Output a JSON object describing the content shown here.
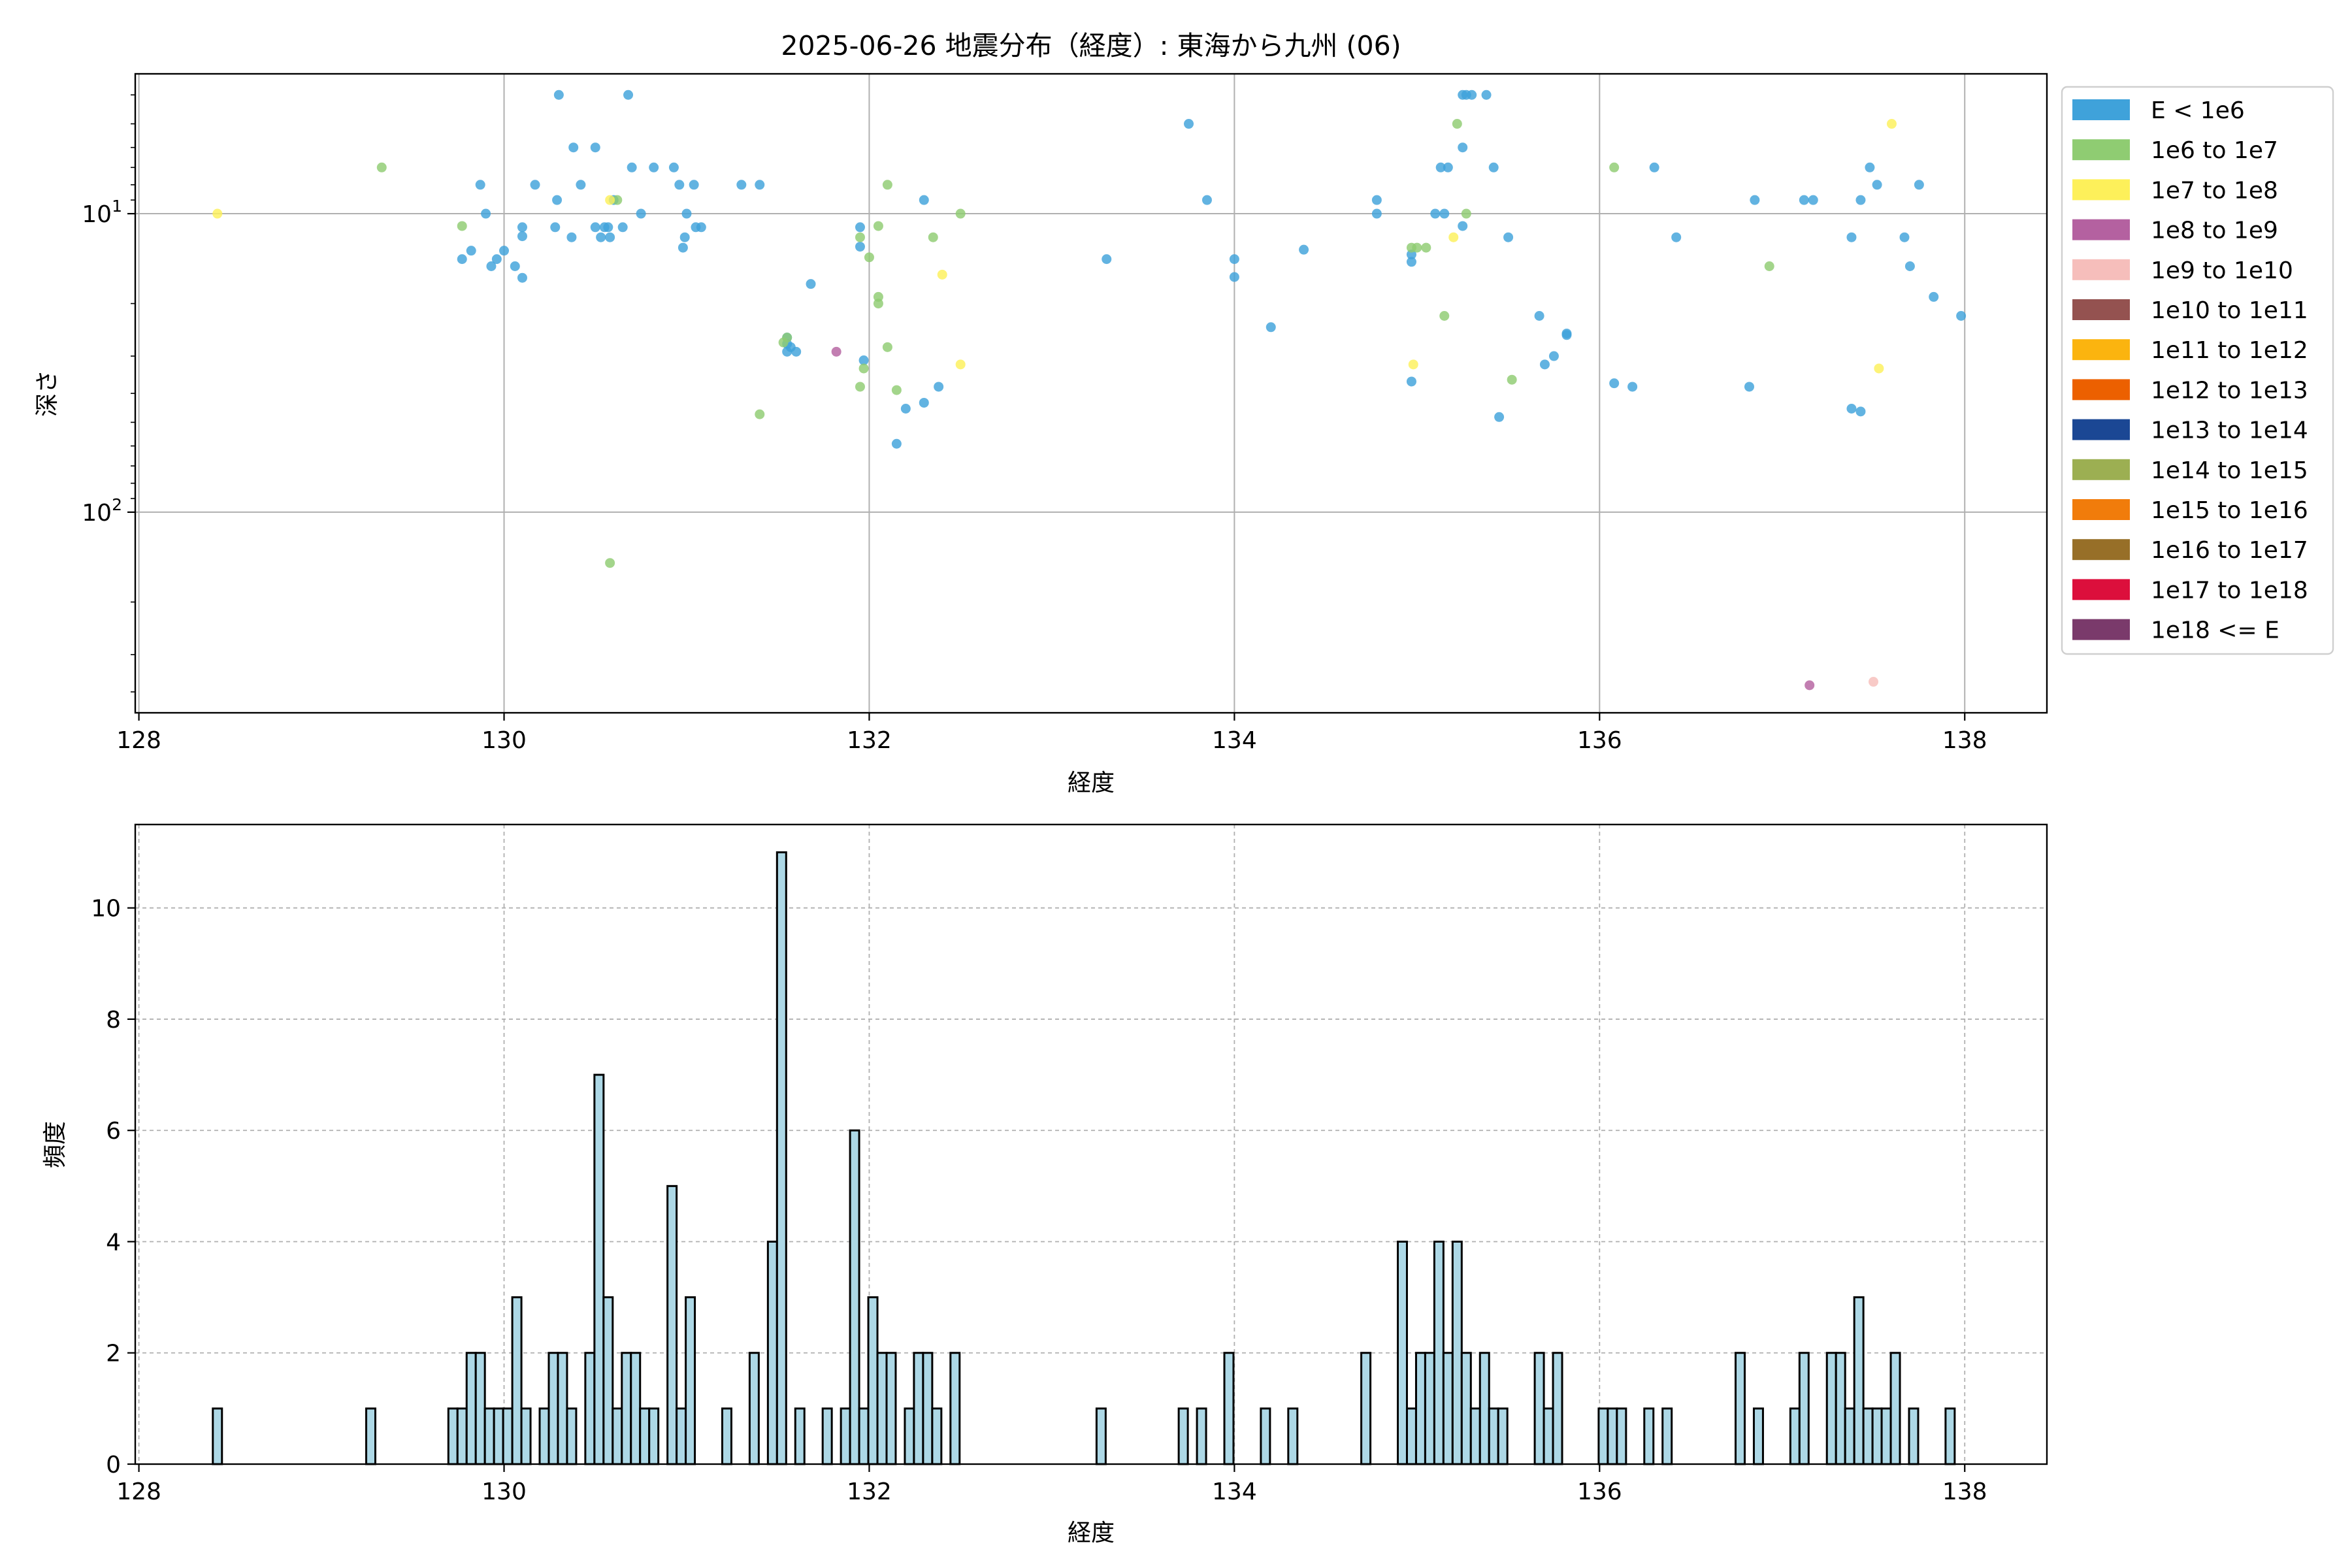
{
  "title": "2025-06-26 地震分布（経度）: 東海から九州 (06)",
  "chart_data": [
    {
      "type": "scatter",
      "xlabel": "経度",
      "ylabel": "深さ",
      "xlim": [
        127.98,
        138.45
      ],
      "xticks": [
        "128",
        "130",
        "132",
        "134",
        "136",
        "138"
      ],
      "yscale": "log",
      "yinverted": true,
      "ylim": [
        3.4,
        470
      ],
      "yticks": [
        {
          "value": 10,
          "base": "10",
          "exp": "1"
        },
        {
          "value": 100,
          "base": "10",
          "exp": "2"
        }
      ],
      "grid": true,
      "legend_position": "outside right",
      "legend": [
        {
          "label": "E < 1e6",
          "color": "#3fa2da"
        },
        {
          "label": "1e6 to 1e7",
          "color": "#8fcc72"
        },
        {
          "label": "1e7 to 1e8",
          "color": "#fdf05a"
        },
        {
          "label": "1e8 to 1e9",
          "color": "#b461a0"
        },
        {
          "label": "1e9 to 1e10",
          "color": "#f6bebb"
        },
        {
          "label": "1e10 to 1e11",
          "color": "#945250"
        },
        {
          "label": "1e11 to 1e12",
          "color": "#fbb40f"
        },
        {
          "label": "1e12 to 1e13",
          "color": "#ec6000"
        },
        {
          "label": "1e13 to 1e14",
          "color": "#1b4794"
        },
        {
          "label": "1e14 to 1e15",
          "color": "#9caf52"
        },
        {
          "label": "1e15 to 1e16",
          "color": "#f17c0b"
        },
        {
          "label": "1e16 to 1e17",
          "color": "#976f28"
        },
        {
          "label": "1e17 to 1e18",
          "color": "#dc0f3c"
        },
        {
          "label": "1e18 <= E",
          "color": "#7a3a6b"
        }
      ],
      "series": [
        {
          "class": 0,
          "points": [
            [
              129.77,
              14.2
            ],
            [
              129.82,
              13.3
            ],
            [
              129.87,
              8.0
            ],
            [
              129.9,
              10.0
            ],
            [
              129.93,
              15.0
            ],
            [
              129.96,
              14.2
            ],
            [
              130.0,
              13.3
            ],
            [
              130.06,
              15.0
            ],
            [
              130.1,
              16.4
            ],
            [
              130.1,
              11.9
            ],
            [
              130.1,
              11.1
            ],
            [
              130.17,
              8.0
            ],
            [
              130.28,
              11.1
            ],
            [
              130.29,
              9.0
            ],
            [
              130.3,
              4.0
            ],
            [
              130.37,
              12.0
            ],
            [
              130.38,
              6.0
            ],
            [
              130.42,
              8.0
            ],
            [
              130.5,
              6.0
            ],
            [
              130.5,
              11.1
            ],
            [
              130.53,
              12.0
            ],
            [
              130.55,
              11.1
            ],
            [
              130.58,
              12.0
            ],
            [
              130.57,
              11.1
            ],
            [
              130.6,
              9.0
            ],
            [
              130.65,
              11.1
            ],
            [
              130.7,
              7.0
            ],
            [
              130.68,
              4.0
            ],
            [
              130.75,
              10.0
            ],
            [
              130.82,
              7.0
            ],
            [
              130.93,
              7.0
            ],
            [
              130.96,
              8.0
            ],
            [
              130.99,
              12.0
            ],
            [
              130.98,
              13.0
            ],
            [
              131.0,
              10.0
            ],
            [
              131.04,
              8.0
            ],
            [
              131.05,
              11.1
            ],
            [
              131.08,
              11.1
            ],
            [
              131.3,
              8.0
            ],
            [
              131.4,
              8.0
            ],
            [
              131.55,
              27.3
            ],
            [
              131.55,
              29.0
            ],
            [
              131.57,
              28.0
            ],
            [
              131.55,
              26.0
            ],
            [
              131.6,
              29.0
            ],
            [
              131.68,
              17.2
            ],
            [
              131.95,
              11.1
            ],
            [
              131.95,
              12.9
            ],
            [
              131.97,
              31.0
            ],
            [
              132.15,
              59.0
            ],
            [
              132.2,
              45.0
            ],
            [
              132.3,
              43.0
            ],
            [
              132.3,
              9.0
            ],
            [
              132.38,
              38.0
            ],
            [
              133.3,
              14.2
            ],
            [
              133.75,
              5.0
            ],
            [
              133.85,
              9.0
            ],
            [
              134.0,
              14.2
            ],
            [
              134.0,
              16.3
            ],
            [
              134.2,
              24.0
            ],
            [
              134.38,
              13.2
            ],
            [
              134.78,
              9.0
            ],
            [
              134.78,
              10.0
            ],
            [
              134.97,
              13.7
            ],
            [
              134.97,
              14.5
            ],
            [
              134.97,
              36.5
            ],
            [
              135.1,
              10.0
            ],
            [
              135.13,
              7.0
            ],
            [
              135.15,
              10.0
            ],
            [
              135.17,
              7.0
            ],
            [
              135.25,
              6.0
            ],
            [
              135.25,
              4.0
            ],
            [
              135.25,
              11.0
            ],
            [
              135.27,
              4.0
            ],
            [
              135.3,
              4.0
            ],
            [
              135.38,
              4.0
            ],
            [
              135.42,
              7.0
            ],
            [
              135.45,
              48.0
            ],
            [
              135.5,
              12.0
            ],
            [
              135.67,
              22.0
            ],
            [
              135.7,
              32.0
            ],
            [
              135.75,
              30.0
            ],
            [
              135.82,
              25.2
            ],
            [
              135.82,
              25.5
            ],
            [
              136.08,
              37.0
            ],
            [
              136.18,
              38.0
            ],
            [
              136.3,
              7.0
            ],
            [
              136.42,
              12.0
            ],
            [
              136.82,
              38.0
            ],
            [
              136.85,
              9.0
            ],
            [
              137.12,
              9.0
            ],
            [
              137.17,
              9.0
            ],
            [
              137.38,
              12.0
            ],
            [
              137.38,
              45.0
            ],
            [
              137.43,
              9.0
            ],
            [
              137.43,
              46.0
            ],
            [
              137.48,
              7.0
            ],
            [
              137.52,
              8.0
            ],
            [
              137.67,
              12.0
            ],
            [
              137.7,
              15.0
            ],
            [
              137.75,
              8.0
            ],
            [
              137.83,
              19.0
            ],
            [
              137.98,
              22.0
            ]
          ]
        },
        {
          "class": 1,
          "points": [
            [
              129.33,
              7.0
            ],
            [
              129.77,
              11.0
            ],
            [
              130.58,
              148.0
            ],
            [
              130.62,
              9.0
            ],
            [
              131.4,
              47.0
            ],
            [
              131.53,
              27.0
            ],
            [
              131.55,
              26.0
            ],
            [
              131.95,
              12.0
            ],
            [
              131.95,
              38.0
            ],
            [
              131.97,
              33.0
            ],
            [
              132.0,
              14.0
            ],
            [
              132.05,
              20.0
            ],
            [
              132.05,
              19.0
            ],
            [
              132.05,
              11.0
            ],
            [
              132.1,
              8.0
            ],
            [
              132.1,
              28.0
            ],
            [
              132.15,
              39.0
            ],
            [
              132.35,
              12.0
            ],
            [
              132.5,
              10.0
            ],
            [
              134.97,
              13.0
            ],
            [
              135.0,
              13.0
            ],
            [
              135.05,
              13.0
            ],
            [
              135.15,
              22.0
            ],
            [
              135.22,
              5.0
            ],
            [
              135.27,
              10.0
            ],
            [
              135.52,
              36.0
            ],
            [
              136.08,
              7.0
            ],
            [
              136.93,
              15.0
            ]
          ]
        },
        {
          "class": 2,
          "points": [
            [
              128.43,
              10.0
            ],
            [
              130.58,
              9.0
            ],
            [
              132.4,
              16.0
            ],
            [
              132.5,
              32.0
            ],
            [
              134.98,
              32.0
            ],
            [
              135.2,
              12.0
            ],
            [
              137.53,
              33.0
            ],
            [
              137.6,
              5.0
            ]
          ]
        },
        {
          "class": 3,
          "points": [
            [
              131.82,
              29.0
            ],
            [
              137.15,
              380.0
            ]
          ]
        },
        {
          "class": 4,
          "points": [
            [
              137.5,
              370.0
            ]
          ]
        }
      ]
    },
    {
      "type": "bar",
      "xlabel": "経度",
      "ylabel": "頻度",
      "xlim": [
        127.98,
        138.45
      ],
      "ylim": [
        0,
        11.5
      ],
      "xticks": [
        "128",
        "130",
        "132",
        "134",
        "136",
        "138"
      ],
      "yticks": [
        "0",
        "2",
        "4",
        "6",
        "8",
        "10"
      ],
      "grid": true,
      "bar_color": "#add8e6",
      "bin_width": 0.05,
      "bins": [
        [
          128.43,
          1
        ],
        [
          129.27,
          1
        ],
        [
          129.72,
          1
        ],
        [
          129.77,
          1
        ],
        [
          129.82,
          2
        ],
        [
          129.87,
          2
        ],
        [
          129.92,
          1
        ],
        [
          129.97,
          1
        ],
        [
          130.02,
          1
        ],
        [
          130.07,
          3
        ],
        [
          130.12,
          1
        ],
        [
          130.22,
          1
        ],
        [
          130.27,
          2
        ],
        [
          130.32,
          2
        ],
        [
          130.37,
          1
        ],
        [
          130.47,
          2
        ],
        [
          130.52,
          7
        ],
        [
          130.57,
          3
        ],
        [
          130.62,
          1
        ],
        [
          130.67,
          2
        ],
        [
          130.72,
          2
        ],
        [
          130.77,
          1
        ],
        [
          130.82,
          1
        ],
        [
          130.92,
          5
        ],
        [
          130.97,
          1
        ],
        [
          131.02,
          3
        ],
        [
          131.22,
          1
        ],
        [
          131.37,
          2
        ],
        [
          131.47,
          4
        ],
        [
          131.52,
          11
        ],
        [
          131.62,
          1
        ],
        [
          131.77,
          1
        ],
        [
          131.87,
          1
        ],
        [
          131.92,
          6
        ],
        [
          131.97,
          1
        ],
        [
          132.02,
          3
        ],
        [
          132.07,
          2
        ],
        [
          132.12,
          2
        ],
        [
          132.22,
          1
        ],
        [
          132.27,
          2
        ],
        [
          132.32,
          2
        ],
        [
          132.37,
          1
        ],
        [
          132.47,
          2
        ],
        [
          133.27,
          1
        ],
        [
          133.72,
          1
        ],
        [
          133.82,
          1
        ],
        [
          133.97,
          2
        ],
        [
          134.17,
          1
        ],
        [
          134.32,
          1
        ],
        [
          134.72,
          2
        ],
        [
          134.92,
          4
        ],
        [
          134.97,
          1
        ],
        [
          135.02,
          2
        ],
        [
          135.07,
          2
        ],
        [
          135.12,
          4
        ],
        [
          135.17,
          2
        ],
        [
          135.22,
          4
        ],
        [
          135.27,
          2
        ],
        [
          135.32,
          1
        ],
        [
          135.37,
          2
        ],
        [
          135.42,
          1
        ],
        [
          135.47,
          1
        ],
        [
          135.67,
          2
        ],
        [
          135.72,
          1
        ],
        [
          135.77,
          2
        ],
        [
          136.02,
          1
        ],
        [
          136.07,
          1
        ],
        [
          136.12,
          1
        ],
        [
          136.27,
          1
        ],
        [
          136.37,
          1
        ],
        [
          136.77,
          2
        ],
        [
          136.87,
          1
        ],
        [
          137.07,
          1
        ],
        [
          137.12,
          2
        ],
        [
          137.27,
          2
        ],
        [
          137.32,
          2
        ],
        [
          137.37,
          1
        ],
        [
          137.42,
          3
        ],
        [
          137.47,
          1
        ],
        [
          137.52,
          1
        ],
        [
          137.57,
          1
        ],
        [
          137.62,
          2
        ],
        [
          137.72,
          1
        ],
        [
          137.92,
          1
        ]
      ]
    }
  ]
}
